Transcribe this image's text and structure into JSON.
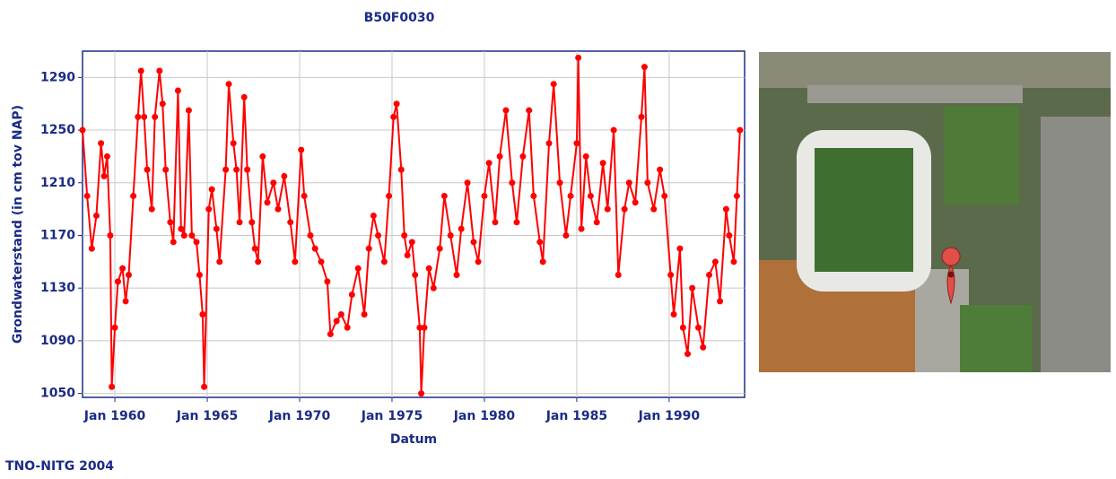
{
  "chart_data": {
    "type": "line",
    "title": "B50F0030",
    "x_label": "Datum",
    "y_label": "Grondwaterstand (in cm tov NAP)",
    "xlim": [
      "1958-04",
      "1994-02"
    ],
    "ylim": [
      1047,
      1310
    ],
    "xticks": [
      {
        "value": "1960-01",
        "label": "Jan 1960"
      },
      {
        "value": "1965-01",
        "label": "Jan 1965"
      },
      {
        "value": "1970-01",
        "label": "Jan 1970"
      },
      {
        "value": "1975-01",
        "label": "Jan 1975"
      },
      {
        "value": "1980-01",
        "label": "Jan 1980"
      },
      {
        "value": "1985-01",
        "label": "Jan 1985"
      },
      {
        "value": "1990-01",
        "label": "Jan 1990"
      }
    ],
    "yticks": [
      1050,
      1090,
      1130,
      1170,
      1210,
      1250,
      1290
    ],
    "grid": true,
    "series": [
      {
        "color": "#ff0000",
        "x": [
          "1958-04",
          "1958-07",
          "1958-10",
          "1959-01",
          "1959-04",
          "1959-06",
          "1959-08",
          "1959-10",
          "1959-11",
          "1960-01",
          "1960-03",
          "1960-06",
          "1960-08",
          "1960-10",
          "1961-01",
          "1961-04",
          "1961-06",
          "1961-08",
          "1961-10",
          "1962-01",
          "1962-03",
          "1962-06",
          "1962-08",
          "1962-10",
          "1963-01",
          "1963-03",
          "1963-06",
          "1963-08",
          "1963-10",
          "1964-01",
          "1964-03",
          "1964-06",
          "1964-08",
          "1964-10",
          "1964-11",
          "1965-02",
          "1965-04",
          "1965-07",
          "1965-09",
          "1966-01",
          "1966-03",
          "1966-06",
          "1966-08",
          "1966-10",
          "1967-01",
          "1967-03",
          "1967-06",
          "1967-08",
          "1967-10",
          "1968-01",
          "1968-04",
          "1968-08",
          "1968-11",
          "1969-03",
          "1969-07",
          "1969-10",
          "1970-02",
          "1970-04",
          "1970-08",
          "1970-11",
          "1971-03",
          "1971-07",
          "1971-09",
          "1972-01",
          "1972-04",
          "1972-08",
          "1972-11",
          "1973-03",
          "1973-07",
          "1973-10",
          "1974-01",
          "1974-04",
          "1974-08",
          "1974-11",
          "1975-02",
          "1975-04",
          "1975-07",
          "1975-09",
          "1975-11",
          "1976-02",
          "1976-04",
          "1976-07",
          "1976-08",
          "1976-10",
          "1977-01",
          "1977-04",
          "1977-08",
          "1977-11",
          "1978-03",
          "1978-07",
          "1978-10",
          "1979-02",
          "1979-06",
          "1979-09",
          "1980-01",
          "1980-04",
          "1980-08",
          "1980-11",
          "1981-03",
          "1981-07",
          "1981-10",
          "1982-02",
          "1982-06",
          "1982-09",
          "1983-01",
          "1983-03",
          "1983-07",
          "1983-10",
          "1984-02",
          "1984-06",
          "1984-09",
          "1985-01",
          "1985-02",
          "1985-04",
          "1985-07",
          "1985-10",
          "1986-02",
          "1986-06",
          "1986-09",
          "1987-01",
          "1987-04",
          "1987-08",
          "1987-11",
          "1988-03",
          "1988-07",
          "1988-09",
          "1988-11",
          "1989-03",
          "1989-07",
          "1989-10",
          "1990-02",
          "1990-04",
          "1990-08",
          "1990-10",
          "1991-01",
          "1991-04",
          "1991-08",
          "1991-11",
          "1992-03",
          "1992-07",
          "1992-10",
          "1993-02",
          "1993-04",
          "1993-07",
          "1993-09",
          "1993-11"
        ],
        "values": [
          1250,
          1200,
          1160,
          1185,
          1240,
          1215,
          1230,
          1170,
          1055,
          1100,
          1135,
          1145,
          1120,
          1140,
          1200,
          1260,
          1295,
          1260,
          1220,
          1190,
          1260,
          1295,
          1270,
          1220,
          1180,
          1165,
          1280,
          1175,
          1170,
          1265,
          1170,
          1165,
          1140,
          1110,
          1055,
          1190,
          1205,
          1175,
          1150,
          1220,
          1285,
          1240,
          1220,
          1180,
          1275,
          1220,
          1180,
          1160,
          1150,
          1230,
          1195,
          1210,
          1190,
          1215,
          1180,
          1150,
          1235,
          1200,
          1170,
          1160,
          1150,
          1135,
          1095,
          1105,
          1110,
          1100,
          1125,
          1145,
          1110,
          1160,
          1185,
          1170,
          1150,
          1200,
          1260,
          1270,
          1220,
          1170,
          1155,
          1165,
          1140,
          1100,
          1050,
          1100,
          1145,
          1130,
          1160,
          1200,
          1170,
          1140,
          1175,
          1210,
          1165,
          1150,
          1200,
          1225,
          1180,
          1230,
          1265,
          1210,
          1180,
          1230,
          1265,
          1200,
          1165,
          1150,
          1240,
          1285,
          1210,
          1170,
          1200,
          1240,
          1305,
          1175,
          1230,
          1200,
          1180,
          1225,
          1190,
          1250,
          1140,
          1190,
          1210,
          1195,
          1260,
          1298,
          1210,
          1190,
          1220,
          1200,
          1140,
          1110,
          1160,
          1100,
          1080,
          1130,
          1100,
          1085,
          1140,
          1150,
          1120,
          1190,
          1170,
          1150,
          1200,
          1250
        ]
      }
    ]
  },
  "footer": "TNO-NITG 2004"
}
